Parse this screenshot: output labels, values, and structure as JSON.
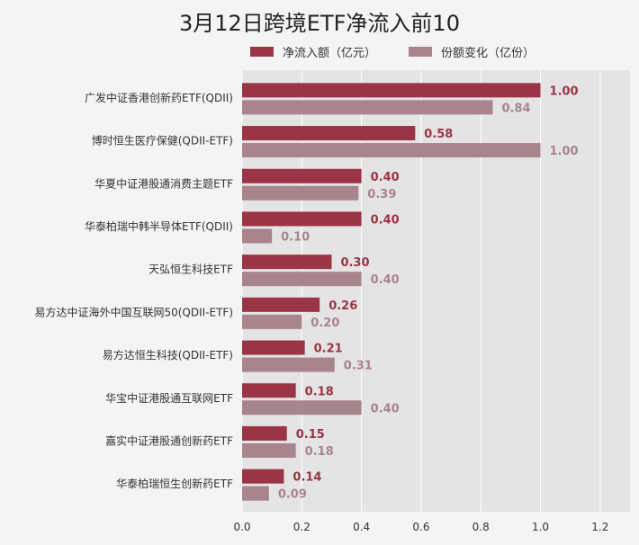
{
  "chart_data": {
    "type": "bar",
    "orientation": "horizontal",
    "title": "3月12日跨境ETF净流入前10",
    "categories": [
      "广发中证香港创新药ETF(QDII)",
      "博时恒生医疗保健(QDII-ETF)",
      "华夏中证港股通消费主题ETF",
      "华泰柏瑞中韩半导体ETF(QDII)",
      "天弘恒生科技ETF",
      "易方达中证海外中国互联网50(QDII-ETF)",
      "易方达恒生科技(QDII-ETF)",
      "华宝中证港股通互联网ETF",
      "嘉实中证港股通创新药ETF",
      "华泰柏瑞恒生创新药ETF"
    ],
    "series": [
      {
        "name": "净流入额（亿元）",
        "color": "#9a3446",
        "values": [
          1.0,
          0.58,
          0.4,
          0.4,
          0.3,
          0.26,
          0.21,
          0.18,
          0.15,
          0.14
        ],
        "labels": [
          "1.00",
          "0.58",
          "0.40",
          "0.40",
          "0.30",
          "0.26",
          "0.21",
          "0.18",
          "0.15",
          "0.14"
        ]
      },
      {
        "name": "份额变化（亿份）",
        "color": "#a8848d",
        "values": [
          0.84,
          1.0,
          0.39,
          0.1,
          0.4,
          0.2,
          0.31,
          0.4,
          0.18,
          0.09
        ],
        "labels": [
          "0.84",
          "1.00",
          "0.39",
          "0.10",
          "0.40",
          "0.20",
          "0.31",
          "0.40",
          "0.18",
          "0.09"
        ]
      }
    ],
    "xlim": [
      0,
      1.3
    ],
    "xticks": [
      "0.0",
      "0.2",
      "0.4",
      "0.6",
      "0.8",
      "1.0",
      "1.2"
    ],
    "legend_position": "top",
    "grid": true
  }
}
